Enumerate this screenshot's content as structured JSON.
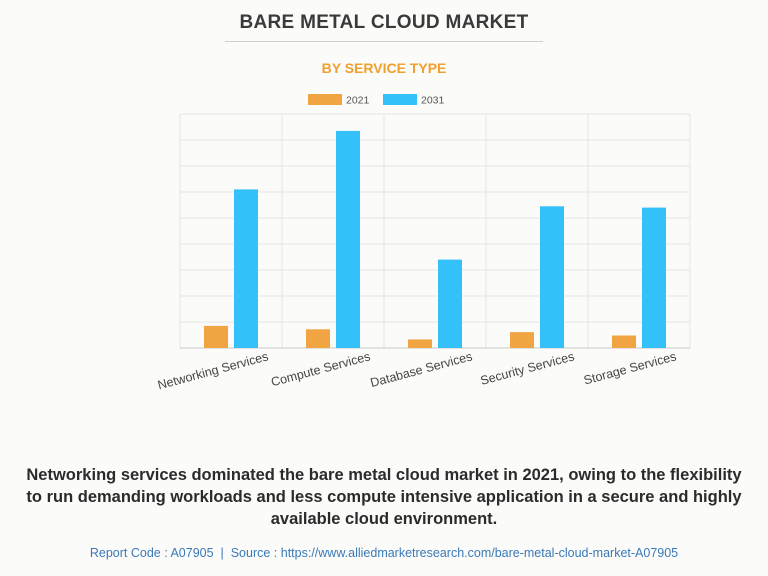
{
  "title": "BARE METAL CLOUD MARKET",
  "subtitle": "BY SERVICE TYPE",
  "caption": "Networking services dominated the bare metal cloud market in 2021, owing to the flexibility to run demanding workloads and less compute intensive application in a secure and highly available cloud environment.",
  "footer": {
    "report_code": "Report Code : A07905",
    "separator": "|",
    "source": "Source : https://www.alliedmarketresearch.com/bare-metal-cloud-market-A07905"
  },
  "colors": {
    "s2021": "#f0a442",
    "s2031": "#34c0f8",
    "grid": "#e4e4e4",
    "axis": "#c8c8c8"
  },
  "chart_data": {
    "type": "bar",
    "categories": [
      "Networking Services",
      "Compute Services",
      "Database Services",
      "Security Services",
      "Storage Services"
    ],
    "series": [
      {
        "name": "2021",
        "values": [
          8.5,
          7.2,
          3.3,
          6.1,
          4.8
        ]
      },
      {
        "name": "2031",
        "values": [
          61,
          83.5,
          34,
          54.5,
          54
        ]
      }
    ],
    "ylim": [
      0,
      90
    ],
    "y_tick_labels": false,
    "grid": true,
    "legend": "top-center"
  }
}
